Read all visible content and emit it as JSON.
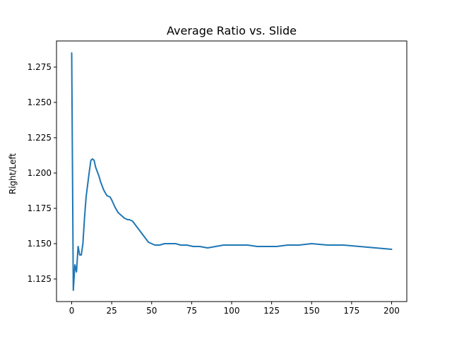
{
  "chart_data": {
    "type": "line",
    "title": "Average Ratio vs. Slide",
    "xlabel": "",
    "ylabel": "Right/Left",
    "xlim": [
      -9.5,
      209.5
    ],
    "ylim": [
      1.109,
      1.2935
    ],
    "xticks": [
      0,
      25,
      50,
      75,
      100,
      125,
      150,
      175,
      200
    ],
    "xtick_labels": [
      "0",
      "25",
      "50",
      "75",
      "100",
      "125",
      "150",
      "175",
      "200"
    ],
    "yticks": [
      1.125,
      1.15,
      1.175,
      1.2,
      1.225,
      1.25,
      1.275
    ],
    "ytick_labels": [
      "1.125",
      "1.150",
      "1.175",
      "1.200",
      "1.225",
      "1.250",
      "1.275"
    ],
    "grid": false,
    "series": [
      {
        "color": "#1f77b4",
        "x": [
          0,
          1,
          2,
          3,
          4,
          5,
          6,
          7,
          8,
          9,
          10,
          11,
          12,
          13,
          14,
          15,
          16,
          17,
          18,
          19,
          20,
          22,
          24,
          25,
          27,
          29,
          31,
          33,
          35,
          36,
          38,
          40,
          42,
          44,
          46,
          48,
          50,
          52,
          55,
          58,
          61,
          65,
          68,
          72,
          76,
          80,
          85,
          90,
          95,
          100,
          105,
          110,
          116,
          122,
          128,
          135,
          142,
          150,
          160,
          170,
          180,
          190,
          200
        ],
        "y": [
          1.285,
          1.117,
          1.135,
          1.13,
          1.148,
          1.142,
          1.142,
          1.15,
          1.168,
          1.183,
          1.192,
          1.201,
          1.209,
          1.21,
          1.209,
          1.204,
          1.201,
          1.198,
          1.194,
          1.191,
          1.188,
          1.184,
          1.183,
          1.181,
          1.176,
          1.172,
          1.17,
          1.168,
          1.167,
          1.167,
          1.166,
          1.163,
          1.16,
          1.157,
          1.154,
          1.151,
          1.15,
          1.149,
          1.149,
          1.15,
          1.15,
          1.15,
          1.149,
          1.149,
          1.148,
          1.148,
          1.147,
          1.148,
          1.149,
          1.149,
          1.149,
          1.149,
          1.148,
          1.148,
          1.148,
          1.149,
          1.149,
          1.15,
          1.149,
          1.149,
          1.148,
          1.147,
          1.146
        ]
      }
    ]
  }
}
